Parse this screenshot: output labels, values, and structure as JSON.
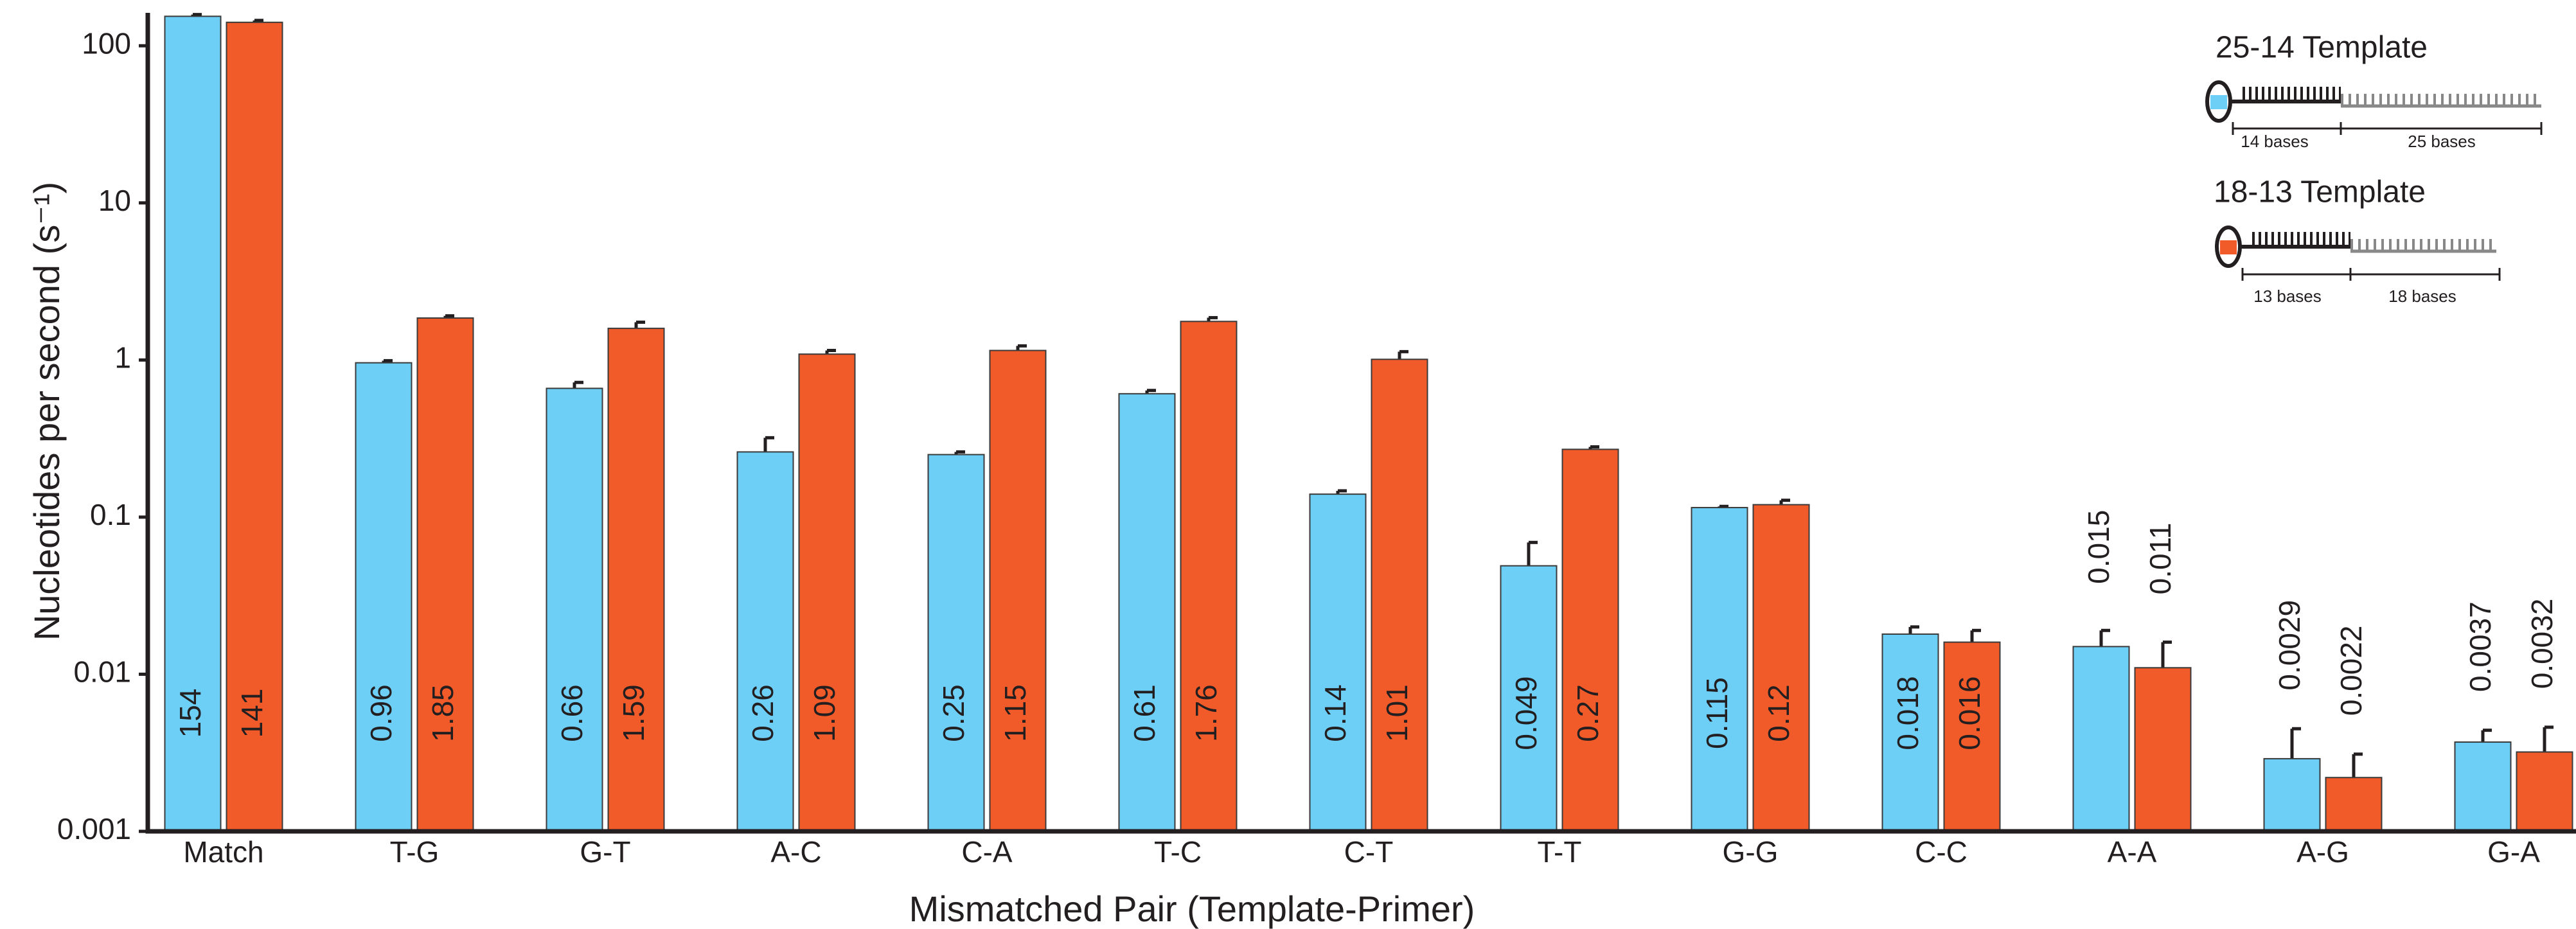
{
  "chart_data": {
    "type": "bar",
    "log_scale": true,
    "x_label": "Mismatched Pair (Template-Primer)",
    "y_label": "Nucleotides per second (s⁻¹)",
    "categories": [
      "Match",
      "T-G",
      "G-T",
      "A-C",
      "C-A",
      "T-C",
      "C-T",
      "T-T",
      "G-G",
      "C-C",
      "A-A",
      "A-G",
      "G-A"
    ],
    "series": [
      {
        "name": "25-14 Template",
        "color": "#6dcff6",
        "bases_labels": [
          "14 bases",
          "25 bases"
        ],
        "values": [
          154,
          0.96,
          0.66,
          0.26,
          0.25,
          0.61,
          0.14,
          0.049,
          0.115,
          0.018,
          0.015,
          0.0029,
          0.0037
        ],
        "errors": [
          4,
          0.03,
          0.06,
          0.06,
          0.01,
          0.03,
          0.007,
          0.02,
          0.002,
          0.002,
          0.004,
          0.0016,
          0.0007
        ]
      },
      {
        "name": "18-13 Template",
        "color": "#f15a29",
        "bases_labels": [
          "13 bases",
          "18 bases"
        ],
        "values": [
          141,
          1.85,
          1.59,
          1.09,
          1.15,
          1.76,
          1.01,
          0.27,
          0.12,
          0.016,
          0.011,
          0.0022,
          0.0032
        ],
        "errors": [
          4,
          0.06,
          0.15,
          0.06,
          0.08,
          0.1,
          0.12,
          0.01,
          0.008,
          0.003,
          0.005,
          0.0009,
          0.0014
        ]
      }
    ],
    "ylim": [
      0.001,
      162
    ],
    "yticks": [
      0.001,
      0.01,
      0.1,
      1,
      10,
      100
    ]
  }
}
